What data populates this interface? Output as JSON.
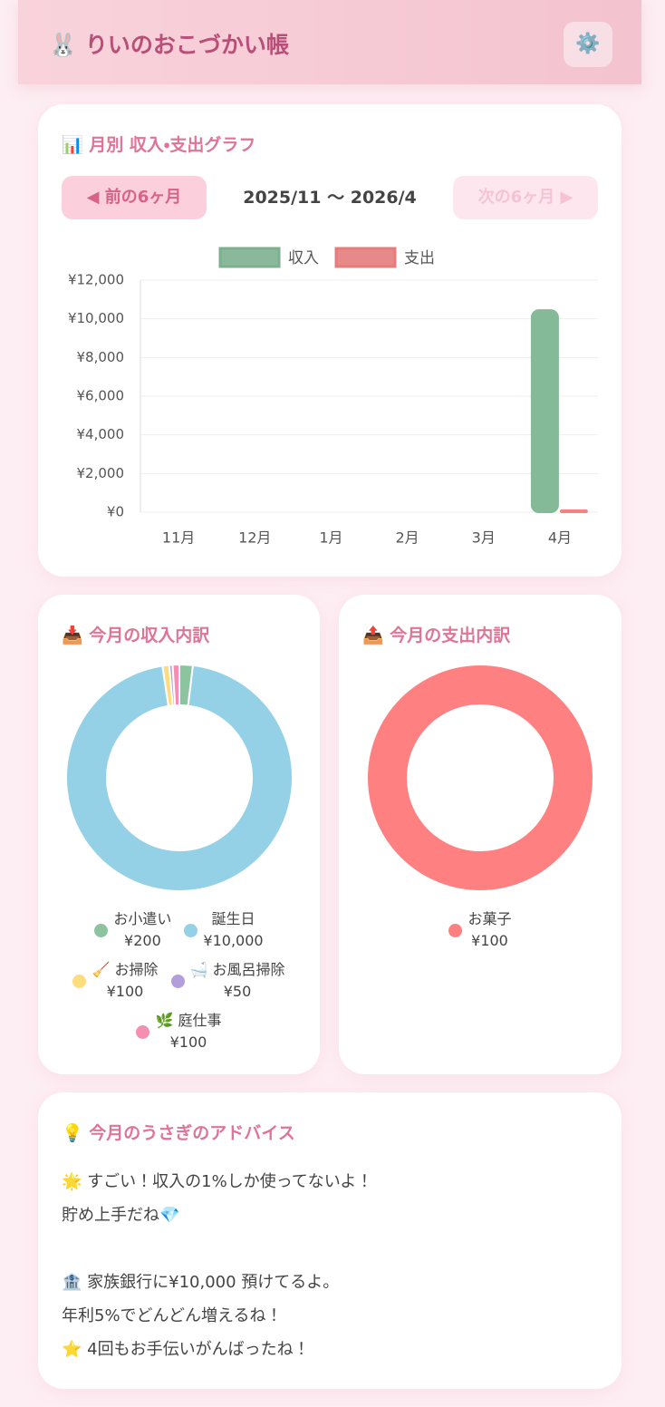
{
  "header": {
    "title": "🐰 りいのおこづかい帳",
    "settings_icon": "⚙️"
  },
  "nav": {
    "prev": "◀ 前の6ヶ月",
    "range": "2025/11 〜 2026/4",
    "next": "次の6ヶ月 ▶"
  },
  "chart_data": [
    {
      "type": "bar",
      "title": "📊 月別 収入・支出グラフ",
      "categories": [
        "11月",
        "12月",
        "1月",
        "2月",
        "3月",
        "4月"
      ],
      "series": [
        {
          "name": "収入",
          "color": "#8cc4a0",
          "values": [
            0,
            0,
            0,
            0,
            0,
            10450
          ]
        },
        {
          "name": "支出",
          "color": "#ff8a8a",
          "values": [
            0,
            0,
            0,
            0,
            0,
            100
          ]
        }
      ],
      "ylim": [
        0,
        12000
      ],
      "yticks": [
        {
          "value": 0,
          "label": "¥0"
        },
        {
          "value": 2000,
          "label": "¥2,000"
        },
        {
          "value": 4000,
          "label": "¥4,000"
        },
        {
          "value": 6000,
          "label": "¥6,000"
        },
        {
          "value": 8000,
          "label": "¥8,000"
        },
        {
          "value": 10000,
          "label": "¥10,000"
        },
        {
          "value": 12000,
          "label": "¥12,000"
        }
      ],
      "grid": true,
      "legend": "top"
    },
    {
      "type": "pie",
      "title": "📥 今月の収入内訳",
      "categories": [
        "お小遣い",
        "誕生日",
        "🧹 お掃除",
        "🛁 お風呂掃除",
        "🌿 庭仕事"
      ],
      "values": [
        200,
        10000,
        100,
        50,
        100
      ],
      "value_labels": [
        "¥200",
        "¥10,000",
        "¥100",
        "¥50",
        "¥100"
      ],
      "colors": [
        "#8cc4a0",
        "#94d0e6",
        "#fddc7e",
        "#b39ddb",
        "#f48fb1"
      ],
      "legend": "bottom"
    },
    {
      "type": "pie",
      "title": "📤 今月の支出内訳",
      "categories": [
        "お菓子"
      ],
      "values": [
        100
      ],
      "value_labels": [
        "¥100"
      ],
      "colors": [
        "#ff8080"
      ],
      "legend": "bottom"
    }
  ],
  "advice": {
    "title": "💡 今月のうさぎのアドバイス",
    "paragraphs": [
      [
        "🌟 すごい！収入の1%しか使ってないよ！",
        "貯め上手だね💎"
      ],
      [
        "🏦 家族銀行に¥10,000 預けてるよ。",
        "年利5%でどんどん増えるね！",
        "⭐ 4回もお手伝いがんばったね！"
      ]
    ]
  }
}
